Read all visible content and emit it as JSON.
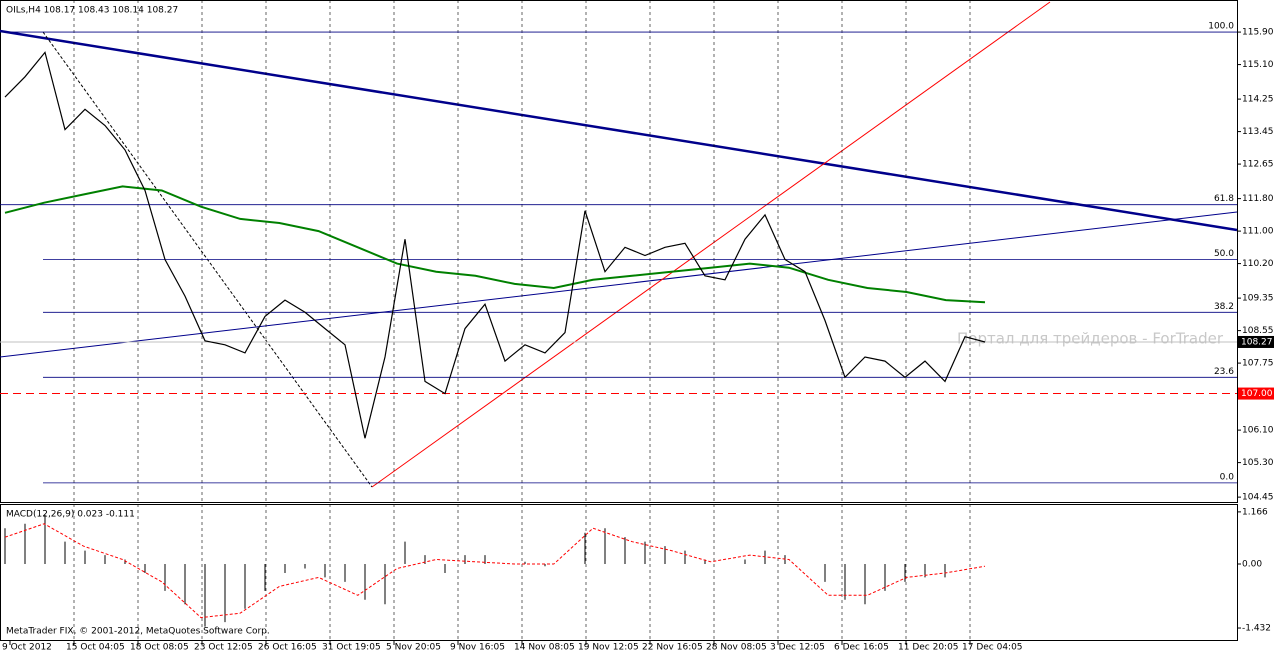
{
  "header": "OILs,H4  108.17 108.43 108.14 108.27",
  "watermark": "Портал для трейдеров - ForTrader",
  "copyright": "MetaTrader FIX, © 2001-2012, MetaQuotes Software Corp.",
  "price_panel": {
    "ylim": [
      104.33,
      116.69
    ],
    "yticks": [
      {
        "value": 115.9,
        "label": "115.90"
      },
      {
        "value": 115.1,
        "label": "115.10"
      },
      114.25,
      113.45,
      112.65,
      {
        "value": 111.8,
        "label": "111.80"
      },
      {
        "value": 111,
        "label": "111.00"
      },
      {
        "value": 110.2,
        "label": "110.20"
      },
      109.35,
      108.55,
      107.75,
      {
        "value": 106.1,
        "label": "106.10"
      },
      {
        "value": 105.3,
        "label": "105.30"
      },
      104.45
    ],
    "close": [
      114.3,
      114.8,
      115.4,
      113.5,
      114.0,
      113.6,
      113.0,
      112.0,
      110.3,
      109.4,
      108.3,
      108.2,
      108.0,
      108.9,
      109.3,
      109.0,
      108.6,
      108.2,
      105.9,
      107.9,
      110.8,
      107.3,
      107.0,
      108.6,
      109.2,
      107.8,
      108.2,
      108.0,
      108.5,
      111.5,
      110.0,
      110.6,
      110.4,
      110.6,
      110.7,
      109.9,
      109.8,
      110.8,
      111.4,
      110.3,
      110.0,
      108.8,
      107.4,
      107.9,
      107.8,
      107.4,
      107.8,
      107.3,
      108.4,
      108.27
    ],
    "moving_average": {
      "color": "#008000",
      "values": [
        111.45,
        111.7,
        111.9,
        112.1,
        112.0,
        111.6,
        111.3,
        111.2,
        111.0,
        110.6,
        110.2,
        110.0,
        109.9,
        109.7,
        109.6,
        109.8,
        109.9,
        110.0,
        110.1,
        110.2,
        110.1,
        109.8,
        109.6,
        109.5,
        109.3,
        109.25
      ]
    },
    "fib_levels": [
      {
        "value": 115.9,
        "label": "100.0"
      },
      {
        "value": 111.65,
        "label": "61.8"
      },
      {
        "value": 110.3,
        "label": "50.0"
      },
      {
        "value": 109.0,
        "label": "38.2"
      },
      {
        "value": 107.4,
        "label": "23.6"
      },
      {
        "value": 104.8,
        "label": "0.0"
      }
    ],
    "alert_level": {
      "value": 107,
      "label": "107.00"
    },
    "current_price": 108.27
  },
  "macd_panel": {
    "title": "MACD(12,26,9) 0.023 -0.111",
    "ylim": [
      -1.7,
      1.32
    ],
    "yticks": [
      {
        "value": 1.166,
        "label": "1.166"
      },
      {
        "value": 0,
        "label": "0.00"
      },
      {
        "value": -1.432,
        "label": "-1.432"
      }
    ],
    "histogram": [
      0.8,
      0.9,
      1.1,
      0.5,
      0.3,
      0.2,
      0.1,
      -0.2,
      -0.6,
      -0.9,
      -1.4,
      -1.3,
      -1.0,
      -0.6,
      -0.2,
      -0.1,
      -0.3,
      -0.4,
      -0.8,
      -0.9,
      0.5,
      0.2,
      -0.2,
      0.2,
      0.2,
      0.0,
      0.05,
      -0.05,
      0.0,
      0.7,
      0.8,
      0.6,
      0.5,
      0.4,
      0.3,
      0.1,
      0.0,
      0.1,
      0.3,
      0.2,
      0.0,
      -0.4,
      -0.8,
      -0.9,
      -0.6,
      -0.4,
      -0.3,
      -0.3,
      0.0,
      0.0
    ],
    "signal": {
      "color": "#ff0000",
      "values": [
        0.6,
        0.9,
        0.4,
        0.1,
        -0.4,
        -1.2,
        -1.1,
        -0.5,
        -0.3,
        -0.7,
        -0.1,
        0.1,
        0.05,
        0.0,
        0.0,
        0.8,
        0.5,
        0.3,
        0.05,
        0.2,
        0.1,
        -0.7,
        -0.7,
        -0.3,
        -0.2,
        -0.05
      ]
    }
  },
  "time_axis": [
    "9 Oct 2012",
    "15 Oct 04:05",
    "18 Oct 08:05",
    "23 Oct 12:05",
    "26 Oct 16:05",
    "31 Oct 19:05",
    "5 Nov 20:05",
    "9 Nov 16:05",
    "14 Nov 08:05",
    "19 Nov 12:05",
    "22 Nov 16:05",
    "28 Nov 08:05",
    "3 Dec 12:05",
    "6 Dec 16:05",
    "11 Dec 20:05",
    "17 Dec 04:05"
  ]
}
